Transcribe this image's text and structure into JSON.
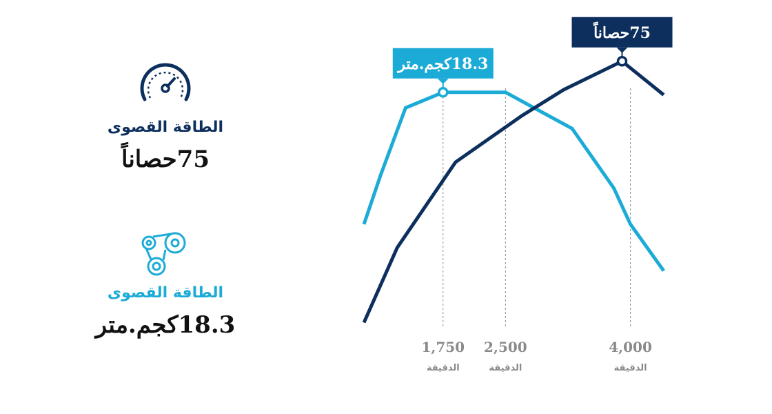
{
  "stats": {
    "power": {
      "icon": "speedometer-icon",
      "label": "الطاقة القصوى",
      "value": "75حصاناً",
      "color": "#0d2f5e"
    },
    "torque": {
      "icon": "gears-belt-icon",
      "label": "الطاقة القصوى",
      "value": "18.3كجم.متر",
      "color": "#1cabd6"
    }
  },
  "chart_data": {
    "type": "line",
    "x_ticks": [
      {
        "value": 1750,
        "label": "1,750",
        "unit": "الدقيقة"
      },
      {
        "value": 2500,
        "label": "2,500",
        "unit": "الدقيقة"
      },
      {
        "value": 4000,
        "label": "4,000",
        "unit": "الدقيقة"
      }
    ],
    "xlim": [
      800,
      4500
    ],
    "ylim": [
      0,
      100
    ],
    "series": [
      {
        "color": "#1cabd6",
        "points": [
          [
            800,
            44
          ],
          [
            1000,
            63
          ],
          [
            1300,
            89
          ],
          [
            1750,
            95
          ],
          [
            2500,
            95
          ],
          [
            3300,
            81
          ],
          [
            3800,
            58
          ],
          [
            4000,
            44
          ],
          [
            4400,
            26
          ]
        ]
      },
      {
        "color": "#0d2f5e",
        "points": [
          [
            800,
            6
          ],
          [
            1200,
            35
          ],
          [
            1900,
            68
          ],
          [
            2700,
            86
          ],
          [
            3200,
            96
          ],
          [
            3900,
            107
          ],
          [
            4400,
            94
          ]
        ]
      }
    ],
    "callouts": [
      {
        "series": 0,
        "x": 1750,
        "text": "18.3كجم.متر",
        "color": "#1cabd6"
      },
      {
        "series": 1,
        "x": 3900,
        "text": "75حصاناً",
        "color": "#0d2f5e"
      }
    ]
  }
}
